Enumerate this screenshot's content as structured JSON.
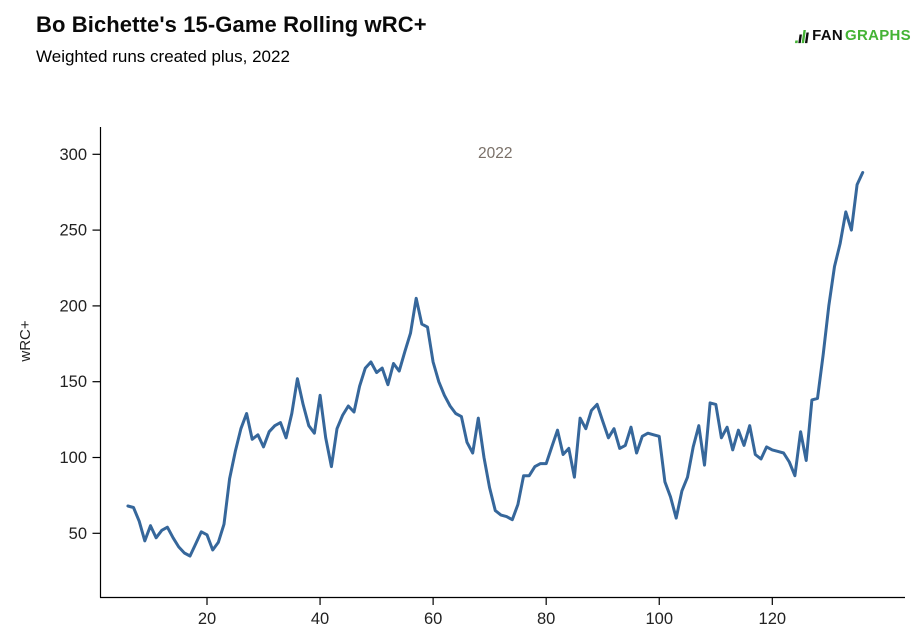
{
  "header": {
    "title": "Bo Bichette's 15-Game Rolling wRC+",
    "subtitle": "Weighted runs created plus, 2022",
    "logo": {
      "fan": "FAN",
      "graphs": "GRAPHS"
    }
  },
  "colors": {
    "line": "#36679B",
    "axis": "#000000",
    "tick_label": "#222222",
    "annotation": "#7A7068",
    "logo_green": "#44B335",
    "logo_black": "#0D0D0D"
  },
  "chart_data": {
    "type": "line",
    "title": "Bo Bichette's 15-Game Rolling wRC+",
    "subtitle": "Weighted runs created plus, 2022",
    "xlabel": "",
    "ylabel": "wRC+",
    "x_ticks": [
      20,
      40,
      60,
      80,
      100,
      120
    ],
    "y_ticks": [
      50,
      100,
      150,
      200,
      250,
      300
    ],
    "xlim": [
      1,
      143
    ],
    "ylim": [
      8,
      318
    ],
    "grid": false,
    "legend_position": "none",
    "annotation": {
      "text": "2022",
      "at_x": 71,
      "at_y": 301
    },
    "x": [
      6,
      7,
      8,
      9,
      10,
      11,
      12,
      13,
      14,
      15,
      16,
      17,
      18,
      19,
      20,
      21,
      22,
      23,
      24,
      25,
      26,
      27,
      28,
      29,
      30,
      31,
      32,
      33,
      34,
      35,
      36,
      37,
      38,
      39,
      40,
      41,
      42,
      43,
      44,
      45,
      46,
      47,
      48,
      49,
      50,
      51,
      52,
      53,
      54,
      55,
      56,
      57,
      58,
      59,
      60,
      61,
      62,
      63,
      64,
      65,
      66,
      67,
      68,
      69,
      70,
      71,
      72,
      73,
      74,
      75,
      76,
      77,
      78,
      79,
      80,
      81,
      82,
      83,
      84,
      85,
      86,
      87,
      88,
      89,
      90,
      91,
      92,
      93,
      94,
      95,
      96,
      97,
      98,
      99,
      100,
      101,
      102,
      103,
      104,
      105,
      106,
      107,
      108,
      109,
      110,
      111,
      112,
      113,
      114,
      115,
      116,
      117,
      118,
      119,
      120,
      121,
      122,
      123,
      124,
      125,
      126,
      127,
      128,
      129,
      130,
      131,
      132,
      133,
      134,
      135,
      136
    ],
    "series": [
      {
        "name": "2022",
        "values": [
          68,
          67,
          58,
          45,
          55,
          47,
          52,
          54,
          47,
          41,
          37,
          35,
          43,
          51,
          49,
          39,
          44,
          56,
          86,
          104,
          119,
          129,
          112,
          115,
          107,
          117,
          121,
          123,
          113,
          129,
          152,
          135,
          121,
          116,
          141,
          113,
          94,
          119,
          128,
          134,
          130,
          147,
          159,
          163,
          156,
          159,
          148,
          162,
          157,
          170,
          182,
          205,
          188,
          186,
          163,
          150,
          141,
          134,
          129,
          127,
          110,
          103,
          126,
          100,
          80,
          65,
          62,
          61,
          59,
          69,
          88,
          88,
          94,
          96,
          96,
          107,
          118,
          102,
          106,
          87,
          126,
          119,
          131,
          135,
          124,
          113,
          119,
          106,
          108,
          120,
          103,
          114,
          116,
          115,
          114,
          84,
          74,
          60,
          78,
          87,
          107,
          121,
          95,
          136,
          135,
          113,
          120,
          105,
          118,
          108,
          121,
          102,
          99,
          107,
          105,
          104,
          103,
          97,
          88,
          117,
          98,
          138,
          139,
          168,
          200,
          226,
          241,
          262,
          250,
          280,
          288
        ]
      }
    ]
  }
}
